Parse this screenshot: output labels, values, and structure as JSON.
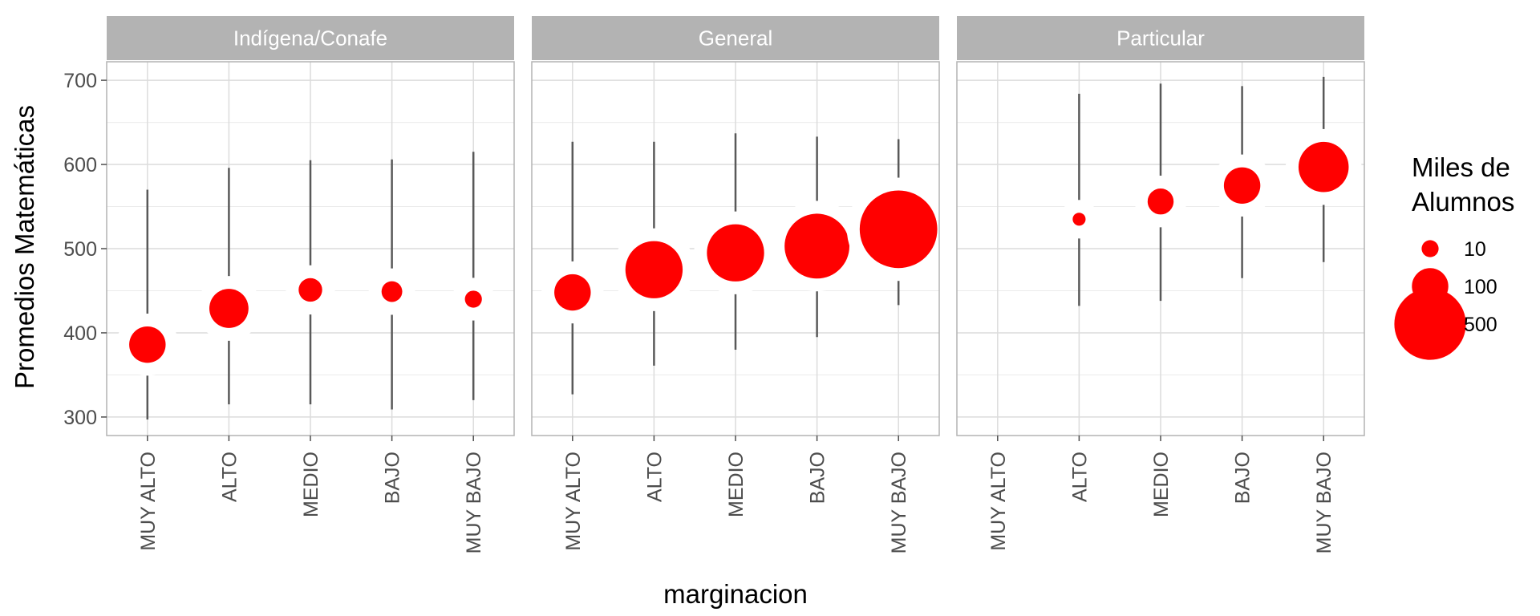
{
  "chart_data": {
    "type": "scatter",
    "ylabel": "Promedios Matemáticas",
    "xlabel": "marginacion",
    "categories": [
      "MUY ALTO",
      "ALTO",
      "MEDIO",
      "BAJO",
      "MUY BAJO"
    ],
    "ylim": [
      278,
      722
    ],
    "yticks": [
      300,
      400,
      500,
      600,
      700
    ],
    "grid": true,
    "point_color": "#ff0000",
    "range_color": "#595959",
    "legend": {
      "title": [
        "Miles de",
        "Alumnos"
      ],
      "position": "right",
      "items": [
        {
          "label": "10",
          "value": 10
        },
        {
          "label": "100",
          "value": 100
        },
        {
          "label": "500",
          "value": 500
        }
      ]
    },
    "panels": [
      {
        "name": "Indígena/Conafe",
        "points": [
          {
            "x": "MUY ALTO",
            "y": 386,
            "size": 100,
            "ymin": 297,
            "ymax": 570
          },
          {
            "x": "ALTO",
            "y": 429,
            "size": 120,
            "ymin": 315,
            "ymax": 596
          },
          {
            "x": "MEDIO",
            "y": 451,
            "size": 30,
            "ymin": 315,
            "ymax": 605
          },
          {
            "x": "BAJO",
            "y": 449,
            "size": 20,
            "ymin": 309,
            "ymax": 606
          },
          {
            "x": "MUY BAJO",
            "y": 440,
            "size": 10,
            "ymin": 320,
            "ymax": 615
          }
        ]
      },
      {
        "name": "General",
        "points": [
          {
            "x": "MUY ALTO",
            "y": 448,
            "size": 100,
            "ymin": 327,
            "ymax": 627
          },
          {
            "x": "ALTO",
            "y": 475,
            "size": 300,
            "ymin": 361,
            "ymax": 627
          },
          {
            "x": "MEDIO",
            "y": 495,
            "size": 300,
            "ymin": 380,
            "ymax": 637
          },
          {
            "x": "BAJO",
            "y": 503,
            "size": 400,
            "ymin": 395,
            "ymax": 633
          },
          {
            "x": "MUY BAJO",
            "y": 523,
            "size": 600,
            "ymin": 433,
            "ymax": 630
          }
        ]
      },
      {
        "name": "Particular",
        "points": [
          {
            "x": "ALTO",
            "y": 535,
            "size": 3,
            "ymin": 432,
            "ymax": 684
          },
          {
            "x": "MEDIO",
            "y": 556,
            "size": 40,
            "ymin": 438,
            "ymax": 696
          },
          {
            "x": "BAJO",
            "y": 575,
            "size": 100,
            "ymin": 465,
            "ymax": 693
          },
          {
            "x": "MUY BAJO",
            "y": 597,
            "size": 220,
            "ymin": 484,
            "ymax": 704
          }
        ]
      }
    ]
  }
}
